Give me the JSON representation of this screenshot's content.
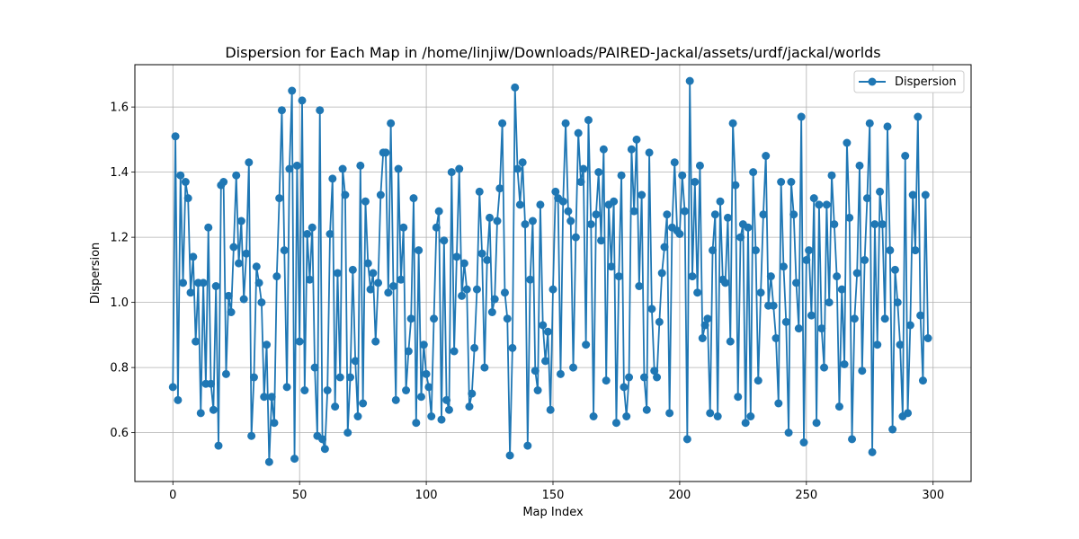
{
  "chart_data": {
    "type": "line",
    "title": "Dispersion for Each Map in /home/linjiw/Downloads/PAIRED-Jackal/assets/urdf/jackal/worlds",
    "xlabel": "Map Index",
    "ylabel": "Dispersion",
    "xlim": [
      -15,
      315
    ],
    "ylim": [
      0.45,
      1.73
    ],
    "x_ticks": [
      0,
      50,
      100,
      150,
      200,
      250,
      300
    ],
    "y_ticks": [
      0.6,
      0.8,
      1.0,
      1.2,
      1.4,
      1.6
    ],
    "y_tick_labels": [
      "0.6",
      "0.8",
      "1.0",
      "1.2",
      "1.4",
      "1.6"
    ],
    "grid": true,
    "legend_position": "top-right",
    "colors": {
      "series": "#1f77b4",
      "grid": "#b0b0b0"
    },
    "series": [
      {
        "name": "Dispersion",
        "marker": "circle",
        "values": [
          0.74,
          1.51,
          0.7,
          1.39,
          1.06,
          1.37,
          1.32,
          1.03,
          1.14,
          0.88,
          1.06,
          0.66,
          1.06,
          0.75,
          1.23,
          0.75,
          0.67,
          1.05,
          0.56,
          1.36,
          1.37,
          0.78,
          1.02,
          0.97,
          1.17,
          1.39,
          1.12,
          1.25,
          1.01,
          1.15,
          1.43,
          0.59,
          0.77,
          1.11,
          1.06,
          1.0,
          0.71,
          0.87,
          0.51,
          0.71,
          0.63,
          1.08,
          1.32,
          1.59,
          1.16,
          0.74,
          1.41,
          1.65,
          0.52,
          1.42,
          0.88,
          1.62,
          0.73,
          1.21,
          1.07,
          1.23,
          0.8,
          0.59,
          1.59,
          0.58,
          0.55,
          0.73,
          1.21,
          1.38,
          0.68,
          1.09,
          0.77,
          1.41,
          1.33,
          0.6,
          0.77,
          1.1,
          0.82,
          0.65,
          1.42,
          0.69,
          1.31,
          1.12,
          1.04,
          1.09,
          0.88,
          1.06,
          1.33,
          1.46,
          1.46,
          1.03,
          1.55,
          1.05,
          0.7,
          1.41,
          1.07,
          1.23,
          0.73,
          0.85,
          0.95,
          1.32,
          0.63,
          1.16,
          0.71,
          0.87,
          0.78,
          0.74,
          0.65,
          0.95,
          1.23,
          1.28,
          0.64,
          1.19,
          0.7,
          0.67,
          1.4,
          0.85,
          1.14,
          1.41,
          1.02,
          1.12,
          1.04,
          0.68,
          0.72,
          0.86,
          1.04,
          1.34,
          1.15,
          0.8,
          1.13,
          1.26,
          0.97,
          1.01,
          1.25,
          1.35,
          1.55,
          1.03,
          0.95,
          0.53,
          0.86,
          1.66,
          1.41,
          1.3,
          1.43,
          1.24,
          0.56,
          1.07,
          1.25,
          0.79,
          0.73,
          1.3,
          0.93,
          0.82,
          0.91,
          0.67,
          1.04,
          1.34,
          1.32,
          0.78,
          1.31,
          1.55,
          1.28,
          1.25,
          0.8,
          1.2,
          1.52,
          1.37,
          1.41,
          0.87,
          1.56,
          1.24,
          0.65,
          1.27,
          1.4,
          1.19,
          1.47,
          0.76,
          1.3,
          1.11,
          1.31,
          0.63,
          1.08,
          1.39,
          0.74,
          0.65,
          0.77,
          1.47,
          1.28,
          1.5,
          1.05,
          1.33,
          0.77,
          0.67,
          1.46,
          0.98,
          0.79,
          0.77,
          0.94,
          1.09,
          1.17,
          1.27,
          0.66,
          1.23,
          1.43,
          1.22,
          1.21,
          1.39,
          1.28,
          0.58,
          1.68,
          1.08,
          1.37,
          1.03,
          1.42,
          0.89,
          0.93,
          0.95,
          0.66,
          1.16,
          1.27,
          0.65,
          1.31,
          1.07,
          1.06,
          1.26,
          0.88,
          1.55,
          1.36,
          0.71,
          1.2,
          1.24,
          0.63,
          1.23,
          0.65,
          1.4,
          1.16,
          0.76,
          1.03,
          1.27,
          1.45,
          0.99,
          1.08,
          0.99,
          0.89,
          0.69,
          1.37,
          1.11,
          0.94,
          0.6,
          1.37,
          1.27,
          1.06,
          0.92,
          1.57,
          0.57,
          1.13,
          1.16,
          0.96,
          1.32,
          0.63,
          1.3,
          0.92,
          0.8,
          1.3,
          1.0,
          1.39,
          1.24,
          1.08,
          0.68,
          1.04,
          0.81,
          1.49,
          1.26,
          0.58,
          0.95,
          1.09,
          1.42,
          0.79,
          1.13,
          1.32,
          1.55,
          0.54,
          1.24,
          0.87,
          1.34,
          1.24,
          0.95,
          1.54,
          1.16,
          0.61,
          1.1,
          1.0,
          0.87,
          0.65,
          1.45,
          0.66,
          0.93,
          1.33,
          1.16,
          1.57,
          0.96,
          0.76,
          1.33,
          0.89
        ]
      }
    ]
  }
}
